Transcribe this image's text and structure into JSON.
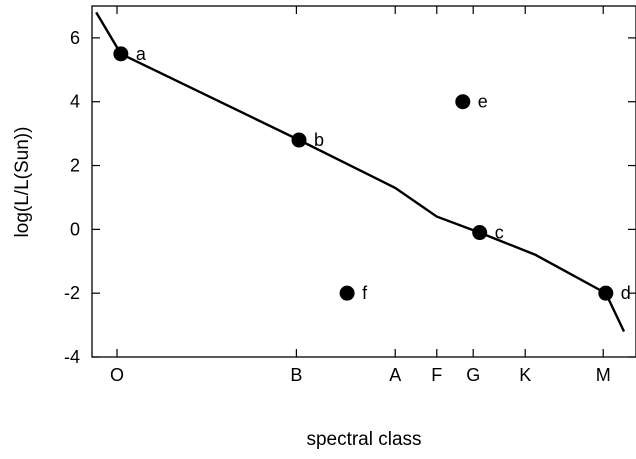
{
  "chart_data": {
    "type": "line",
    "xlabel": "spectral class",
    "ylabel": "log(L/L(Sun))",
    "xlim": [
      0,
      19
    ],
    "ylim": [
      -4,
      7
    ],
    "x_ticks": [
      {
        "label": "O",
        "x": 0
      },
      {
        "label": "B",
        "x": 6.9
      },
      {
        "label": "A",
        "x": 10.7
      },
      {
        "label": "F",
        "x": 12.3
      },
      {
        "label": "G",
        "x": 13.7
      },
      {
        "label": "K",
        "x": 15.7
      },
      {
        "label": "M",
        "x": 18.7
      }
    ],
    "y_ticks": [
      -4,
      -2,
      0,
      2,
      4,
      6
    ],
    "series": [
      {
        "x": [
          -0.8,
          0.15,
          7.0,
          10.7,
          12.3,
          13.95,
          16.1,
          18.8,
          19.5
        ],
        "y": [
          6.8,
          5.5,
          2.8,
          1.3,
          0.4,
          -0.1,
          -0.8,
          -2.0,
          -3.2
        ]
      }
    ],
    "points": [
      {
        "label": "a",
        "x": 0.15,
        "y": 5.5
      },
      {
        "label": "b",
        "x": 7.0,
        "y": 2.8
      },
      {
        "label": "c",
        "x": 13.95,
        "y": -0.1
      },
      {
        "label": "d",
        "x": 18.8,
        "y": -2.0
      },
      {
        "label": "e",
        "x": 13.3,
        "y": 4.0
      },
      {
        "label": "f",
        "x": 8.85,
        "y": -2.0
      }
    ],
    "grid": false,
    "legend": false
  }
}
